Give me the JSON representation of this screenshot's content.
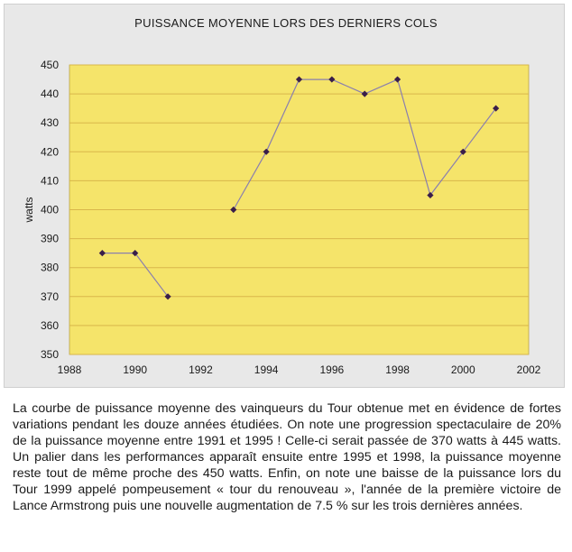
{
  "chart_data": {
    "type": "line",
    "title": "PUISSANCE MOYENNE LORS DES DERNIERS COLS",
    "xlabel": "",
    "ylabel": "watts",
    "xlim": [
      1988,
      2002
    ],
    "ylim": [
      350,
      450
    ],
    "xticks": [
      1988,
      1990,
      1992,
      1994,
      1996,
      1998,
      2000,
      2002
    ],
    "yticks": [
      350,
      360,
      370,
      380,
      390,
      400,
      410,
      420,
      430,
      440,
      450
    ],
    "grid": "horizontal",
    "legend": "none",
    "segments": [
      {
        "x": [
          1989,
          1990,
          1991
        ],
        "y": [
          385,
          385,
          370
        ]
      },
      {
        "x": [
          1993,
          1994,
          1995,
          1996,
          1997,
          1998,
          1999,
          2000,
          2001
        ],
        "y": [
          400,
          420,
          445,
          445,
          440,
          445,
          405,
          420,
          435
        ]
      }
    ],
    "colors": {
      "plot_background": "#f5e46a",
      "grid": "#d9b64a",
      "line": "#8a7fae",
      "marker": "#3a1e4a"
    }
  },
  "caption": "La courbe de puissance moyenne des vainqueurs du Tour obtenue met en évidence de fortes variations pendant les douze années étudiées. On note une progression spectaculaire de 20% de la puissance moyenne entre 1991 et 1995 ! Celle-ci serait passée de 370 watts à 445 watts. Un palier dans les performances apparaît ensuite entre 1995 et 1998, la puissance moyenne reste tout de même proche des 450 watts. Enfin, on note une baisse de la puissance lors du Tour 1999 appelé pompeusement « tour du renouveau », l'année de la première victoire de Lance Armstrong puis une nouvelle augmentation de 7.5 % sur les trois dernières années."
}
